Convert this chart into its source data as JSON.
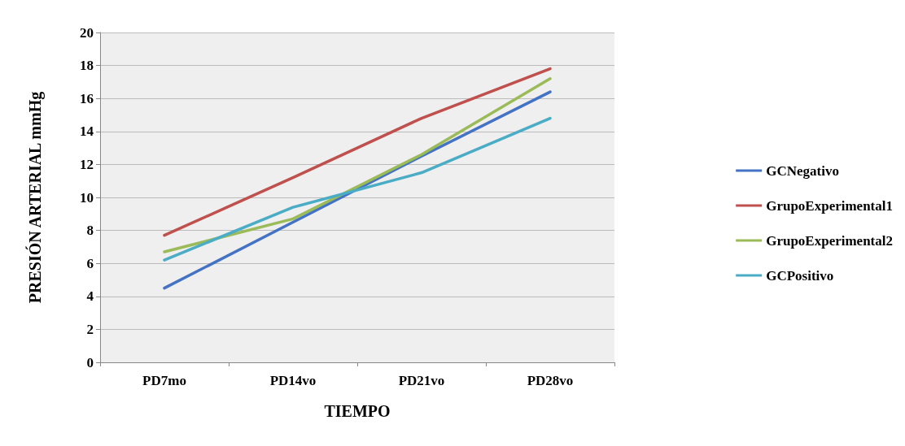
{
  "chart_data": {
    "type": "line",
    "xlabel": "TIEMPO",
    "ylabel": "PRESIÓN ARTERIAL mmHg",
    "categories": [
      "PD7mo",
      "PD14vo",
      "PD21vo",
      "PD28vo"
    ],
    "series": [
      {
        "name": "GCNegativo",
        "color": "#4472c4",
        "values": [
          4.5,
          8.5,
          12.5,
          16.4
        ]
      },
      {
        "name": "GrupoExperimental1",
        "color": "#c0504d",
        "values": [
          7.7,
          11.2,
          14.8,
          17.8
        ]
      },
      {
        "name": "GrupoExperimental2",
        "color": "#9bbb59",
        "values": [
          6.7,
          8.7,
          12.6,
          17.2
        ]
      },
      {
        "name": "GCPositivo",
        "color": "#4bacc6",
        "values": [
          6.2,
          9.4,
          11.5,
          14.8
        ]
      }
    ],
    "ylim": [
      0,
      20
    ],
    "yticks": [
      0,
      2,
      4,
      6,
      8,
      10,
      12,
      14,
      16,
      18,
      20
    ],
    "grid": "y",
    "legend": "right",
    "marker": "none",
    "line_style": "solid"
  }
}
